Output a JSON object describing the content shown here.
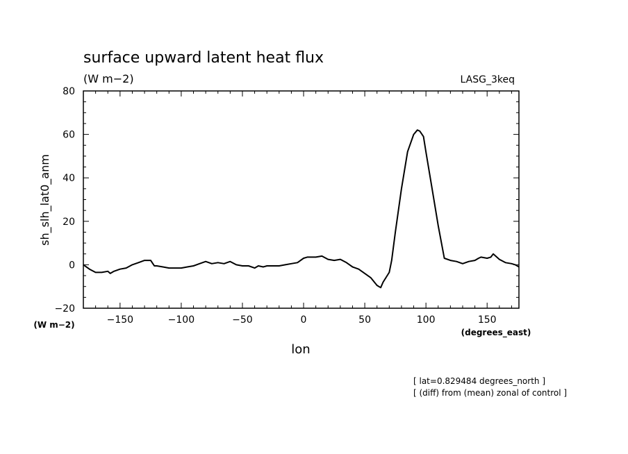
{
  "chart_data": {
    "type": "line",
    "title": "surface upward latent heat flux",
    "subtitle": "(W m−2)",
    "tag": "LASG_3keq",
    "xlabel": "lon",
    "xunit": "(degrees_east)",
    "ylabel": "sh_slh_lat0_anm",
    "yunit": "(W m−2)",
    "xlim": [
      -180,
      176
    ],
    "ylim": [
      -20,
      80
    ],
    "xticks": [
      -150,
      -100,
      -50,
      0,
      50,
      100,
      150
    ],
    "yticks": [
      -20,
      0,
      20,
      40,
      60,
      80
    ],
    "grid": false,
    "notes": [
      "[ lat=0.829484 degrees_north ]",
      "[ (diff) from (mean) zonal of control ]"
    ],
    "series": [
      {
        "x": [
          -180,
          -175,
          -170,
          -165,
          -160,
          -158,
          -155,
          -150,
          -145,
          -140,
          -135,
          -130,
          -125,
          -122,
          -120,
          -115,
          -110,
          -105,
          -100,
          -95,
          -90,
          -85,
          -80,
          -75,
          -70,
          -65,
          -60,
          -55,
          -50,
          -45,
          -40,
          -37,
          -33,
          -30,
          -25,
          -20,
          -15,
          -10,
          -5,
          0,
          3,
          5,
          10,
          15,
          20,
          25,
          30,
          35,
          40,
          45,
          50,
          55,
          60,
          63,
          65,
          70,
          72,
          75,
          80,
          85,
          90,
          93,
          95,
          98,
          100,
          105,
          110,
          115,
          120,
          125,
          130,
          135,
          140,
          143,
          145,
          150,
          153,
          155,
          160,
          165,
          170,
          173,
          176
        ],
        "y": [
          0,
          -2,
          -3.5,
          -3.5,
          -3,
          -4,
          -3,
          -2,
          -1.5,
          0,
          1,
          2,
          2,
          -0.5,
          -0.5,
          -1,
          -1.5,
          -1.5,
          -1.5,
          -1,
          -0.5,
          0.5,
          1.5,
          0.5,
          1,
          0.5,
          1.5,
          0,
          -0.5,
          -0.5,
          -1.5,
          -0.5,
          -1,
          -0.5,
          -0.5,
          -0.5,
          0,
          0.5,
          1,
          3,
          3.5,
          3.5,
          3.5,
          4,
          2.5,
          2,
          2.5,
          1,
          -1,
          -2,
          -4,
          -6,
          -9.5,
          -10.5,
          -8,
          -3.5,
          2,
          15,
          35,
          52,
          60,
          62,
          61.5,
          59,
          52,
          35,
          18,
          3,
          2,
          1.5,
          0.5,
          1.5,
          2,
          3,
          3.5,
          3,
          3.5,
          5,
          2.5,
          1,
          0.5,
          0,
          -1
        ]
      }
    ]
  }
}
